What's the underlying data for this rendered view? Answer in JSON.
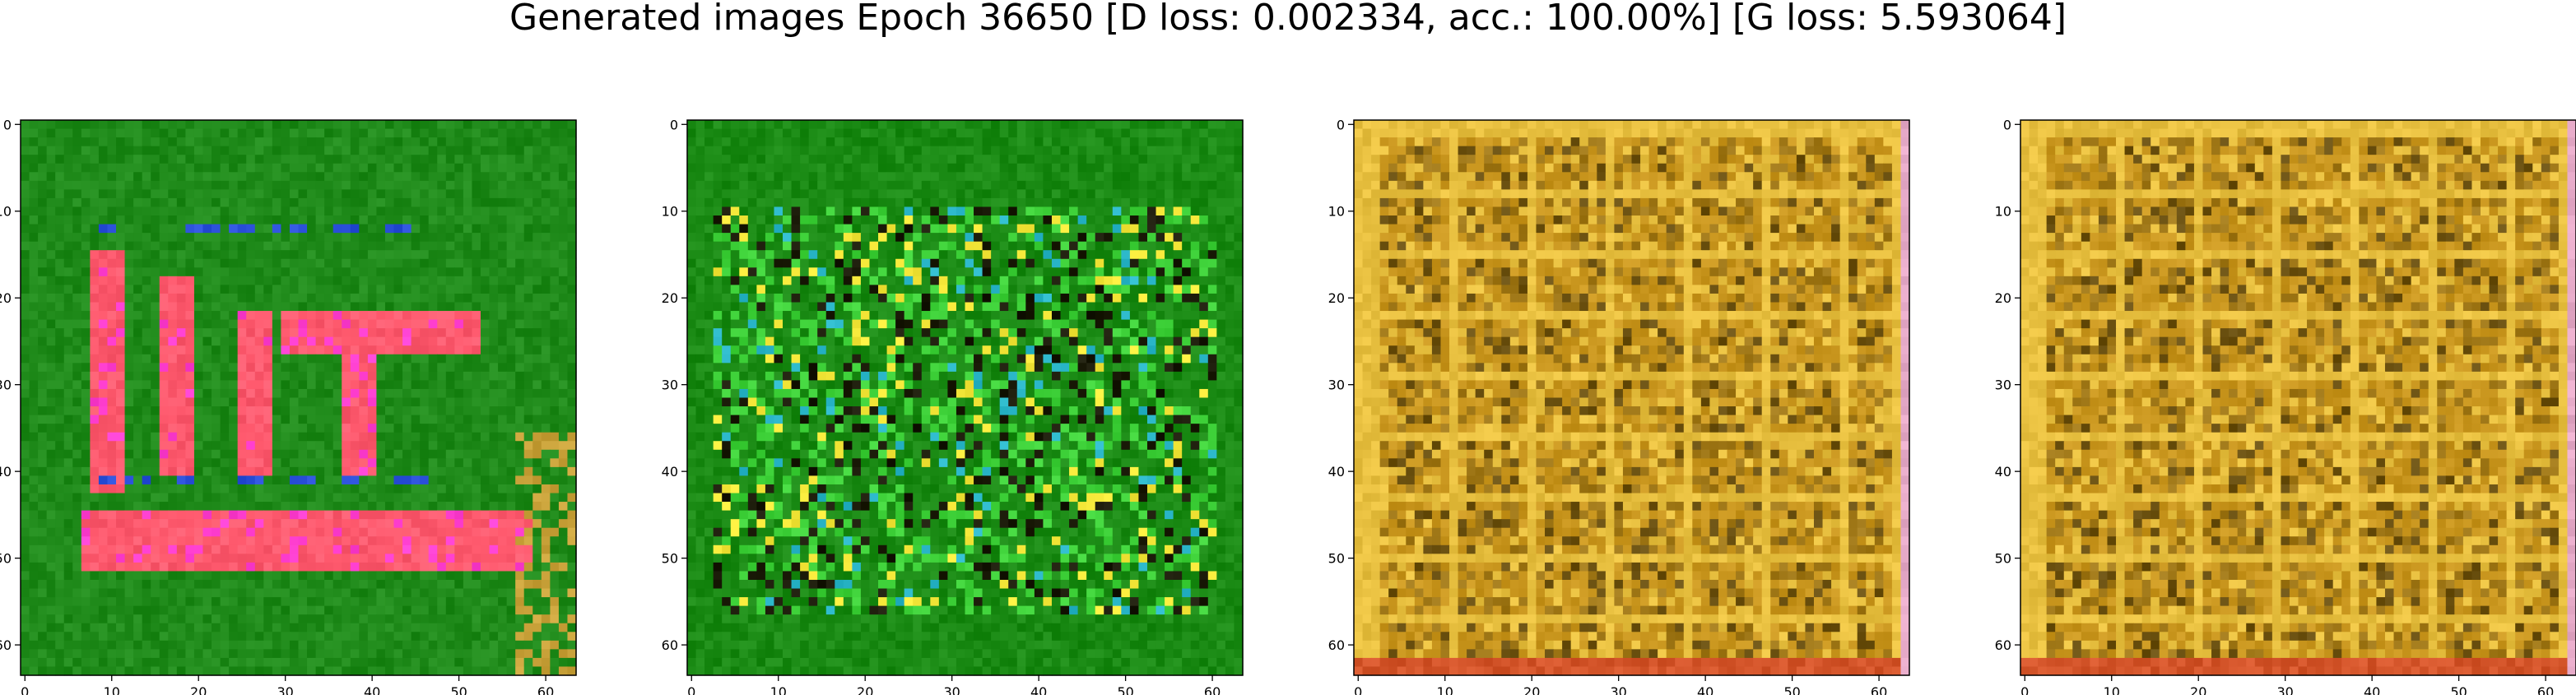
{
  "title": "Generated images Epoch 36650 [D loss: 0.002334, acc.: 100.00%] [G loss: 5.593064]",
  "chart_data": [
    {
      "type": "heatmap",
      "panel": 1,
      "image_shape": [
        64,
        64,
        3
      ],
      "dominant_colors": [
        "#1f8a1a",
        "#ff5a6e",
        "#ff3fd0",
        "#2a4fd8",
        "#c9a23a"
      ],
      "content": "generated sample: green background with pink/red text-like strokes",
      "x_ticks": [
        "0",
        "10",
        "20",
        "30",
        "40",
        "50",
        "60"
      ],
      "y_ticks": [
        "0",
        "10",
        "20",
        "30",
        "40",
        "50",
        "60"
      ],
      "xlim": [
        -0.5,
        63.5
      ],
      "ylim": [
        63.5,
        -0.5
      ]
    },
    {
      "type": "heatmap",
      "panel": 2,
      "image_shape": [
        64,
        64,
        3
      ],
      "dominant_colors": [
        "#1a8a14",
        "#3fd23a",
        "#f5e83a",
        "#1a1a08",
        "#2ab6c8"
      ],
      "content": "generated sample: noisy green texture with dark and yellow speckles",
      "x_ticks": [
        "0",
        "10",
        "20",
        "30",
        "40",
        "50",
        "60"
      ],
      "y_ticks": [
        "0",
        "10",
        "20",
        "30",
        "40",
        "50",
        "60"
      ],
      "xlim": [
        -0.5,
        63.5
      ],
      "ylim": [
        63.5,
        -0.5
      ]
    },
    {
      "type": "heatmap",
      "panel": 3,
      "image_shape": [
        64,
        64,
        3
      ],
      "dominant_colors": [
        "#c9961e",
        "#a07818",
        "#e8c040",
        "#6a5010",
        "#d4552a"
      ],
      "content": "generated sample: mustard/gold grid-like texture with pink right edge",
      "x_ticks": [
        "0",
        "10",
        "20",
        "30",
        "40",
        "50",
        "60"
      ],
      "y_ticks": [
        "0",
        "10",
        "20",
        "30",
        "40",
        "50",
        "60"
      ],
      "xlim": [
        -0.5,
        63.5
      ],
      "ylim": [
        63.5,
        -0.5
      ]
    },
    {
      "type": "heatmap",
      "panel": 4,
      "image_shape": [
        64,
        64,
        3
      ],
      "dominant_colors": [
        "#c9961e",
        "#a07818",
        "#e8c040",
        "#6a5010",
        "#d4552a"
      ],
      "content": "generated sample: mustard/gold grid-like texture with pink right edge",
      "x_ticks": [
        "0",
        "10",
        "20",
        "30",
        "40",
        "50",
        "60"
      ],
      "y_ticks": [
        "0",
        "10",
        "20",
        "30",
        "40",
        "50",
        "60"
      ],
      "xlim": [
        -0.5,
        63.5
      ],
      "ylim": [
        63.5,
        -0.5
      ]
    }
  ]
}
